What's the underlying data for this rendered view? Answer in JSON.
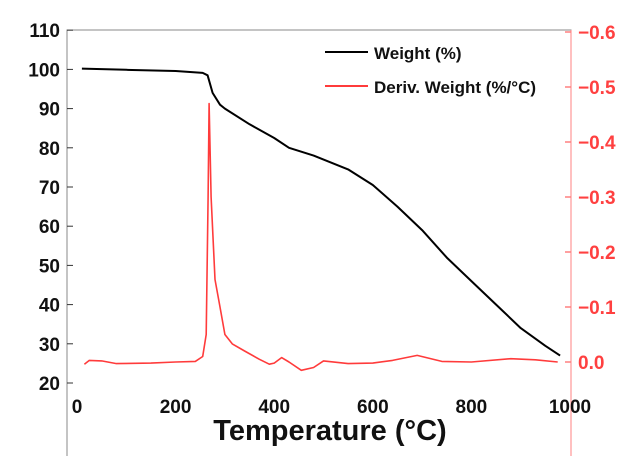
{
  "chart_data": {
    "type": "line",
    "title": "",
    "xlabel": "Temperature (°C)",
    "ylabel": "",
    "y2label": "",
    "xlim": [
      -10,
      1000
    ],
    "ylim": [
      20,
      110
    ],
    "y2lim": [
      0.04,
      -0.6
    ],
    "xticks": [
      "0",
      "200",
      "400",
      "600",
      "800",
      "1000"
    ],
    "yticks": [
      "20",
      "30",
      "40",
      "50",
      "60",
      "70",
      "80",
      "90",
      "100",
      "110"
    ],
    "y2ticks": [
      "0.0",
      "-0.1",
      "-0.2",
      "-0.3",
      "-0.4",
      "-0.5",
      "-0.6"
    ],
    "legend_position": "top-right",
    "grid": false,
    "series": [
      {
        "name": "Weight (%)",
        "axis": "left",
        "color": "#000000",
        "x": [
          10,
          100,
          200,
          255,
          265,
          275,
          290,
          300,
          350,
          400,
          430,
          480,
          550,
          600,
          650,
          700,
          750,
          800,
          850,
          900,
          950,
          980
        ],
        "y": [
          100.2,
          99.9,
          99.6,
          99.1,
          98.5,
          94,
          91,
          90,
          86,
          82.5,
          80,
          78,
          74.5,
          70.5,
          65,
          59,
          52,
          46,
          40,
          34,
          29.5,
          27
        ]
      },
      {
        "name": "Deriv. Weight (%/°C)",
        "axis": "right",
        "color": "#ff3b3b",
        "x": [
          15,
          25,
          50,
          80,
          150,
          200,
          240,
          255,
          262,
          266,
          268,
          272,
          280,
          290,
          300,
          315,
          340,
          370,
          390,
          400,
          415,
          430,
          455,
          480,
          500,
          550,
          600,
          640,
          690,
          740,
          800,
          880,
          930,
          975
        ],
        "y": [
          0.004,
          -0.003,
          -0.002,
          0.003,
          0.002,
          0,
          -0.001,
          -0.01,
          -0.05,
          -0.3,
          -0.47,
          -0.3,
          -0.15,
          -0.1,
          -0.05,
          -0.033,
          -0.02,
          -0.005,
          0.004,
          0.002,
          -0.008,
          0,
          0.015,
          0.01,
          -0.002,
          0.003,
          0.002,
          -0.003,
          -0.012,
          -0.001,
          0,
          -0.006,
          -0.004,
          0.0
        ]
      }
    ]
  }
}
